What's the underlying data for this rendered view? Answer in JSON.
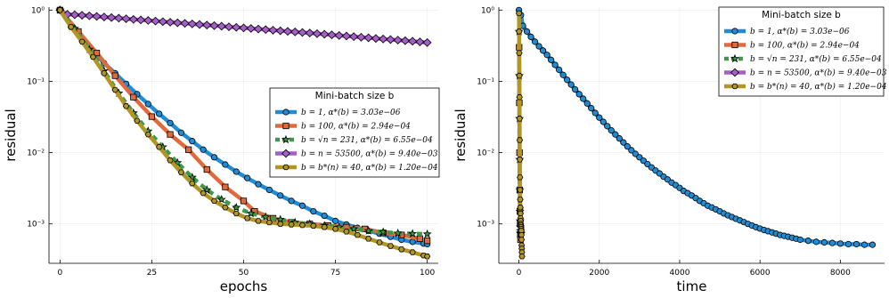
{
  "chart_data": [
    {
      "type": "line",
      "xlabel": "epochs",
      "ylabel": "residual",
      "xlim": [
        -3,
        103
      ],
      "ylim": [
        0.00028,
        1.1
      ],
      "y_scale": "log",
      "x_ticks": [
        "0",
        "25",
        "50",
        "75",
        "100"
      ],
      "y_ticks": [
        "10⁰",
        "10⁻¹",
        "10⁻²",
        "10⁻³"
      ],
      "grid": true,
      "legend_position": "center-right",
      "legend_title": "Mini-batch size b",
      "series": [
        {
          "name": "b = 1, α*(b) = 3.03e−06",
          "color": "#1f8dd6",
          "marker": "circle",
          "x": [
            0,
            3,
            6,
            9,
            12,
            15,
            18,
            21,
            24,
            27,
            30,
            33,
            36,
            39,
            42,
            45,
            48,
            51,
            54,
            57,
            60,
            63,
            66,
            69,
            72,
            75,
            78,
            81,
            84,
            87,
            90,
            93,
            96,
            99,
            100
          ],
          "y": [
            1.0,
            0.58,
            0.38,
            0.26,
            0.18,
            0.13,
            0.092,
            0.066,
            0.048,
            0.035,
            0.026,
            0.019,
            0.0145,
            0.011,
            0.0086,
            0.0068,
            0.0054,
            0.0044,
            0.0036,
            0.003,
            0.0025,
            0.0021,
            0.0018,
            0.0015,
            0.0013,
            0.0011,
            0.00098,
            0.00088,
            0.0008,
            0.00073,
            0.00066,
            0.0006,
            0.00056,
            0.00053,
            0.00052
          ]
        },
        {
          "name": "b = 100, α*(b) = 2.94e−04",
          "color": "#e06a3b",
          "marker": "square",
          "x": [
            0,
            5,
            10,
            15,
            20,
            25,
            30,
            35,
            40,
            45,
            50,
            53,
            58,
            63,
            68,
            73,
            78,
            83,
            88,
            93,
            98,
            100
          ],
          "y": [
            1.0,
            0.5,
            0.25,
            0.12,
            0.06,
            0.032,
            0.018,
            0.011,
            0.0058,
            0.0033,
            0.0021,
            0.0015,
            0.0012,
            0.00105,
            0.001,
            0.00095,
            0.0009,
            0.00085,
            0.00075,
            0.0007,
            0.00062,
            0.00058
          ]
        },
        {
          "name": "b = √n = 231, α*(b) = 6.55e−04",
          "color": "#3a9a48",
          "marker": "star",
          "x": [
            0,
            4,
            8,
            12,
            16,
            20,
            24,
            28,
            32,
            36,
            40,
            44,
            48,
            52,
            56,
            60,
            64,
            68,
            72,
            76,
            80,
            84,
            88,
            92,
            96,
            100
          ],
          "y": [
            1.0,
            0.55,
            0.28,
            0.14,
            0.068,
            0.036,
            0.02,
            0.012,
            0.0072,
            0.0045,
            0.003,
            0.0022,
            0.0017,
            0.0014,
            0.00125,
            0.00115,
            0.00105,
            0.001,
            0.00095,
            0.0009,
            0.00085,
            0.0008,
            0.00077,
            0.00074,
            0.00073,
            0.00072
          ]
        },
        {
          "name": "b = n = 53500, α*(b) = 9.40e−03",
          "color": "#a65ec8",
          "marker": "diamond",
          "x": [
            0,
            2,
            4,
            6,
            8,
            10,
            12,
            14,
            16,
            18,
            20,
            22,
            24,
            26,
            28,
            30,
            32,
            34,
            36,
            38,
            40,
            42,
            44,
            46,
            48,
            50,
            52,
            54,
            56,
            58,
            60,
            62,
            64,
            66,
            68,
            70,
            72,
            74,
            76,
            78,
            80,
            82,
            84,
            86,
            88,
            90,
            92,
            94,
            96,
            98,
            100
          ],
          "y": [
            1.0,
            0.87,
            0.86,
            0.845,
            0.83,
            0.815,
            0.8,
            0.785,
            0.77,
            0.755,
            0.74,
            0.727,
            0.714,
            0.701,
            0.688,
            0.675,
            0.663,
            0.651,
            0.639,
            0.627,
            0.616,
            0.605,
            0.594,
            0.583,
            0.572,
            0.562,
            0.552,
            0.542,
            0.532,
            0.522,
            0.512,
            0.503,
            0.494,
            0.485,
            0.476,
            0.467,
            0.458,
            0.449,
            0.44,
            0.432,
            0.424,
            0.416,
            0.408,
            0.4,
            0.393,
            0.386,
            0.379,
            0.372,
            0.365,
            0.358,
            0.35
          ]
        },
        {
          "name": "b = b*(n) = 40, α*(b) = 1.20e−04",
          "color": "#b29623",
          "marker": "hexagon",
          "x": [
            0,
            3,
            6,
            9,
            12,
            15,
            18,
            21,
            24,
            27,
            30,
            33,
            36,
            39,
            42,
            45,
            48,
            51,
            54,
            57,
            60,
            63,
            66,
            69,
            72,
            75,
            78,
            81,
            84,
            87,
            90,
            93,
            96,
            99,
            100
          ],
          "y": [
            1.0,
            0.58,
            0.36,
            0.22,
            0.13,
            0.076,
            0.045,
            0.028,
            0.018,
            0.012,
            0.0078,
            0.0053,
            0.0037,
            0.0027,
            0.0021,
            0.0017,
            0.0014,
            0.0012,
            0.0011,
            0.00105,
            0.001,
            0.00098,
            0.00096,
            0.00094,
            0.0009,
            0.00085,
            0.00078,
            0.0007,
            0.00062,
            0.00055,
            0.00049,
            0.00044,
            0.0004,
            0.00036,
            0.00035
          ]
        }
      ]
    },
    {
      "type": "line",
      "xlabel": "time",
      "ylabel": "residual",
      "xlim": [
        -500,
        9100
      ],
      "ylim": [
        0.00028,
        1.1
      ],
      "y_scale": "log",
      "x_ticks": [
        "0",
        "2000",
        "4000",
        "6000",
        "8000"
      ],
      "y_ticks": [
        "10⁰",
        "10⁻¹",
        "10⁻²",
        "10⁻³"
      ],
      "grid": true,
      "legend_position": "top-right",
      "legend_title": "Mini-batch size b",
      "series": [
        {
          "name": "b = 1, α*(b) = 3.03e−06",
          "color": "#1f8dd6",
          "marker": "circle",
          "x": [
            0,
            50,
            100,
            200,
            300,
            400,
            500,
            600,
            700,
            800,
            900,
            1000,
            1100,
            1200,
            1300,
            1400,
            1500,
            1600,
            1700,
            1800,
            1900,
            2000,
            2100,
            2200,
            2300,
            2400,
            2500,
            2600,
            2700,
            2800,
            2900,
            3000,
            3100,
            3200,
            3300,
            3400,
            3500,
            3600,
            3700,
            3800,
            3900,
            4000,
            4100,
            4200,
            4300,
            4400,
            4500,
            4600,
            4700,
            4800,
            4900,
            5000,
            5100,
            5200,
            5300,
            5400,
            5500,
            5600,
            5700,
            5800,
            5900,
            6000,
            6100,
            6200,
            6300,
            6400,
            6500,
            6600,
            6700,
            6800,
            6900,
            7000,
            7200,
            7400,
            7600,
            7800,
            8000,
            8200,
            8400,
            8600,
            8800
          ],
          "y": [
            1.0,
            0.85,
            0.6,
            0.5,
            0.42,
            0.36,
            0.31,
            0.27,
            0.235,
            0.2,
            0.17,
            0.145,
            0.123,
            0.105,
            0.09,
            0.077,
            0.066,
            0.057,
            0.049,
            0.042,
            0.036,
            0.031,
            0.027,
            0.0235,
            0.0205,
            0.018,
            0.0158,
            0.0139,
            0.0122,
            0.0108,
            0.0096,
            0.0086,
            0.0077,
            0.0069,
            0.0062,
            0.0056,
            0.0051,
            0.0046,
            0.0042,
            0.0038,
            0.0035,
            0.0032,
            0.0029,
            0.0027,
            0.0025,
            0.0023,
            0.0021,
            0.00195,
            0.0018,
            0.0017,
            0.0016,
            0.0015,
            0.0014,
            0.00132,
            0.00125,
            0.00118,
            0.00112,
            0.00106,
            0.001,
            0.00095,
            0.0009,
            0.00086,
            0.00082,
            0.00079,
            0.00076,
            0.00073,
            0.0007,
            0.00068,
            0.00066,
            0.00064,
            0.00062,
            0.0006,
            0.00058,
            0.00056,
            0.00055,
            0.00054,
            0.00053,
            0.00052,
            0.00052,
            0.00051,
            0.00051
          ]
        },
        {
          "name": "b = 100, α*(b) = 2.94e−04",
          "color": "#e06a3b",
          "marker": "square",
          "x": [
            5,
            10,
            15,
            20,
            25,
            30,
            35,
            40
          ],
          "y": [
            0.3,
            0.05,
            0.01,
            0.003,
            0.0015,
            0.001,
            0.0007,
            0.0006
          ]
        },
        {
          "name": "b = √n = 231, α*(b) = 6.55e−04",
          "color": "#3a9a48",
          "marker": "star",
          "x": [
            4,
            8,
            12,
            16,
            20,
            24,
            28,
            32,
            36,
            40,
            44,
            48
          ],
          "y": [
            0.5,
            0.12,
            0.03,
            0.008,
            0.003,
            0.0015,
            0.0011,
            0.0009,
            0.0008,
            0.00075,
            0.00073,
            0.00072
          ]
        },
        {
          "name": "b = n = 53500, α*(b) = 9.40e−03",
          "color": "#a65ec8",
          "marker": "diamond",
          "x": [],
          "y": []
        },
        {
          "name": "b = b*(n) = 40, α*(b) = 1.20e−04",
          "color": "#b29623",
          "marker": "hexagon",
          "x": [
            2,
            5,
            8,
            11,
            14,
            17,
            20,
            23,
            26,
            29,
            32,
            35,
            38,
            41,
            44,
            47,
            50,
            53,
            56,
            59,
            62,
            65,
            68,
            71,
            74,
            77
          ],
          "y": [
            0.9,
            0.5,
            0.25,
            0.12,
            0.06,
            0.03,
            0.015,
            0.008,
            0.0045,
            0.003,
            0.0022,
            0.0017,
            0.0014,
            0.0012,
            0.0011,
            0.001,
            0.00095,
            0.0009,
            0.00085,
            0.0008,
            0.0007,
            0.0006,
            0.0005,
            0.00045,
            0.0004,
            0.00035
          ]
        }
      ]
    }
  ]
}
